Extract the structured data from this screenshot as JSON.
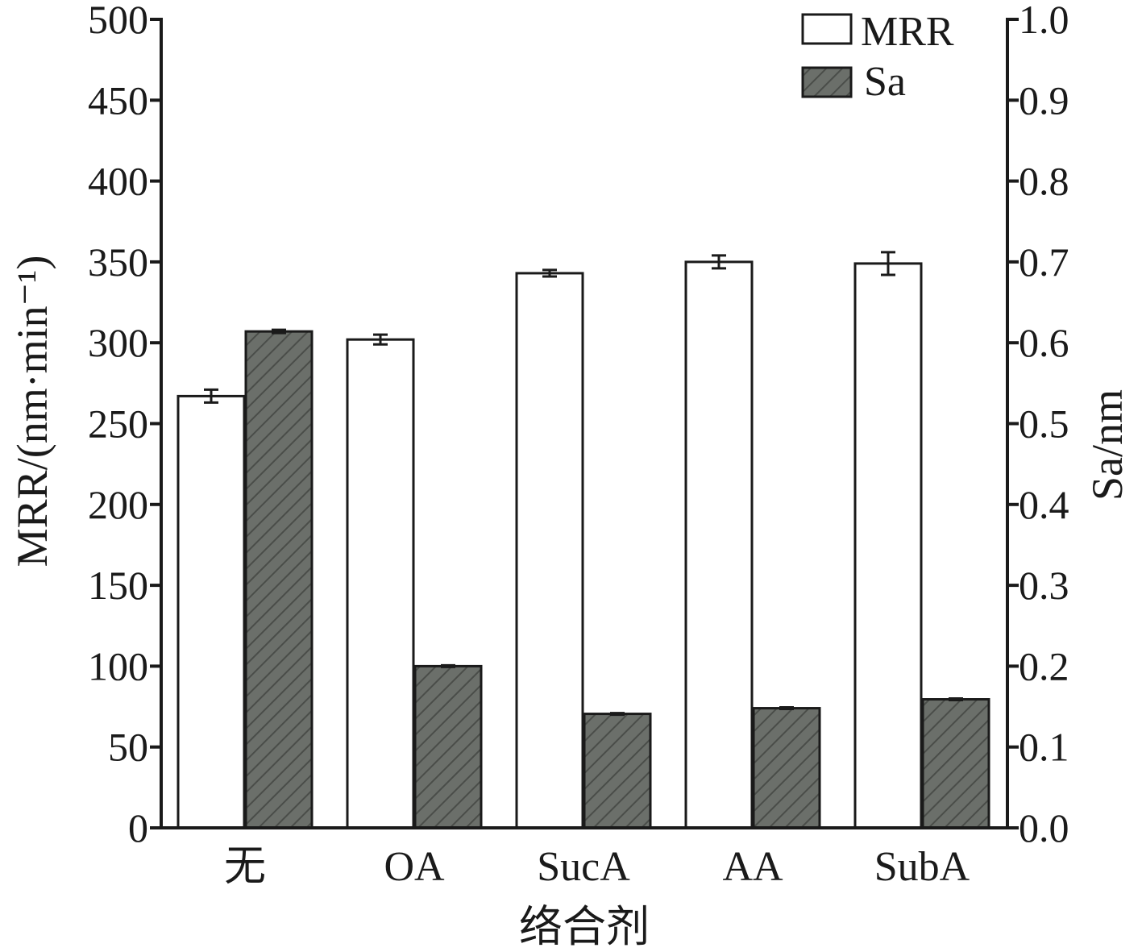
{
  "chart_data": {
    "type": "bar",
    "categories": [
      "无",
      "OA",
      "SucA",
      "AA",
      "SubA"
    ],
    "xlabel": "络合剂",
    "ylabel": "MRR/(nm·min⁻¹)",
    "y2label": "Sa/nm",
    "ylim": [
      0,
      500
    ],
    "y2lim": [
      0.0,
      1.0
    ],
    "yticks": [
      "0",
      "50",
      "100",
      "150",
      "200",
      "250",
      "300",
      "350",
      "400",
      "450",
      "500"
    ],
    "y2ticks": [
      "0.0",
      "0.1",
      "0.2",
      "0.3",
      "0.4",
      "0.5",
      "0.6",
      "0.7",
      "0.8",
      "0.9",
      "1.0"
    ],
    "legend_position": "top-right",
    "grid": false,
    "series": [
      {
        "name": "MRR",
        "axis": "left",
        "values": [
          267,
          302,
          343,
          350,
          349
        ],
        "errors": [
          4,
          3,
          2,
          4,
          7
        ],
        "color": "#ffffff"
      },
      {
        "name": "Sa",
        "axis": "right",
        "values": [
          0.614,
          0.2,
          0.141,
          0.148,
          0.159
        ],
        "errors": [
          0.002,
          0.001,
          0.001,
          0.001,
          0.001
        ],
        "color": "#6b6f6a"
      }
    ]
  }
}
